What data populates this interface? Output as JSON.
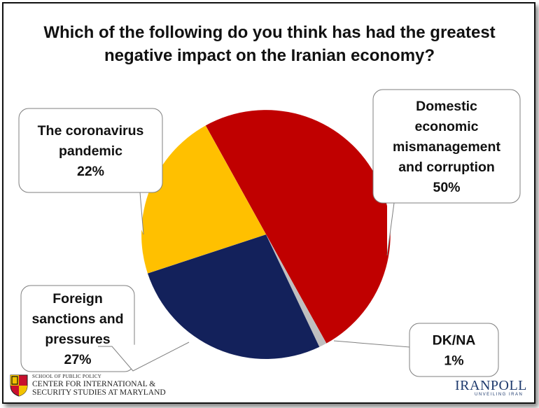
{
  "title": "Which of the following do you think has had the greatest negative impact on the Iranian economy?",
  "title_lines": [
    "Which of the following do you think has had the greatest",
    "negative impact on the Iranian economy?"
  ],
  "chart_data": {
    "type": "pie",
    "title": "Which of the following do you think has had the greatest negative impact on the Iranian economy?",
    "slices": [
      {
        "label": "Domestic economic mismanagement and corruption",
        "label_lines": [
          "Domestic",
          "economic",
          "mismanagement",
          "and corruption"
        ],
        "value": 50,
        "display": "50%",
        "color": "#c00000"
      },
      {
        "label": "DK/NA",
        "label_lines": [
          "DK/NA"
        ],
        "value": 1,
        "display": "1%",
        "color": "#bfbfbf"
      },
      {
        "label": "Foreign sanctions and pressures",
        "label_lines": [
          "Foreign",
          "sanctions and",
          "pressures"
        ],
        "value": 27,
        "display": "27%",
        "color": "#13215b"
      },
      {
        "label": "The coronavirus pandemic",
        "label_lines": [
          "The coronavirus",
          "pandemic"
        ],
        "value": 22,
        "display": "22%",
        "color": "#ffc000"
      }
    ],
    "legend": "callouts"
  },
  "logos": {
    "left_small": "SCHOOL OF PUBLIC POLICY",
    "left_line1": "CENTER FOR INTERNATIONAL &",
    "left_line2": "SECURITY STUDIES AT MARYLAND",
    "right_name": "IRANPOLL",
    "right_tagline": "UNVEILING IRAN"
  }
}
